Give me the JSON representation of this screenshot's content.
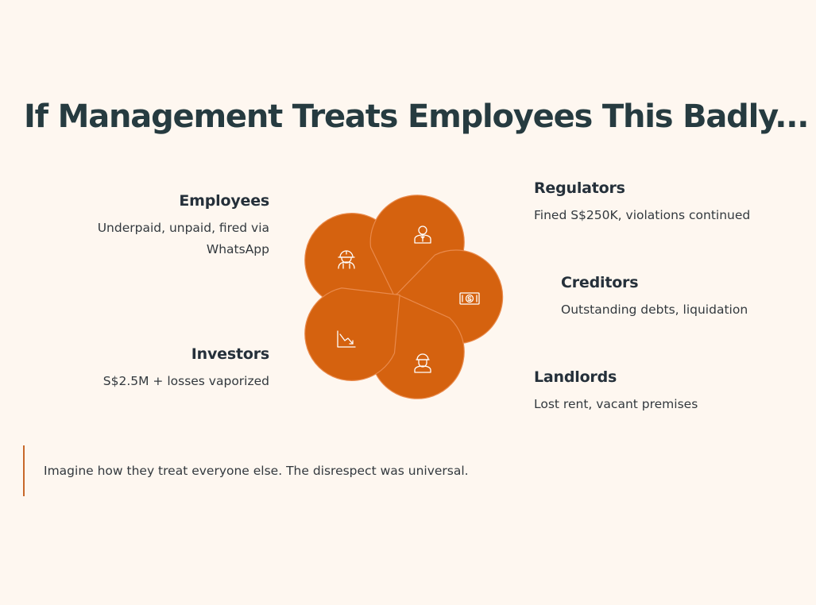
{
  "title": "If Management Treats Employees This Badly...",
  "accent_color": "#d5620f",
  "stakeholders": [
    {
      "name": "Employees",
      "description": "Underpaid, unpaid, fired via WhatsApp",
      "icon": "construction-worker-icon"
    },
    {
      "name": "Regulators",
      "description": "Fined S$250K, violations continued",
      "icon": "official-person-icon"
    },
    {
      "name": "Creditors",
      "description": "Outstanding debts, liquidation",
      "icon": "dollar-bill-icon"
    },
    {
      "name": "Landlords",
      "description": "Lost rent, vacant premises",
      "icon": "hard-hat-person-icon"
    },
    {
      "name": "Investors",
      "description": "S$2.5M + losses vaporized",
      "icon": "chart-down-icon"
    }
  ],
  "quote": "Imagine how they treat everyone else. The disrespect was universal."
}
